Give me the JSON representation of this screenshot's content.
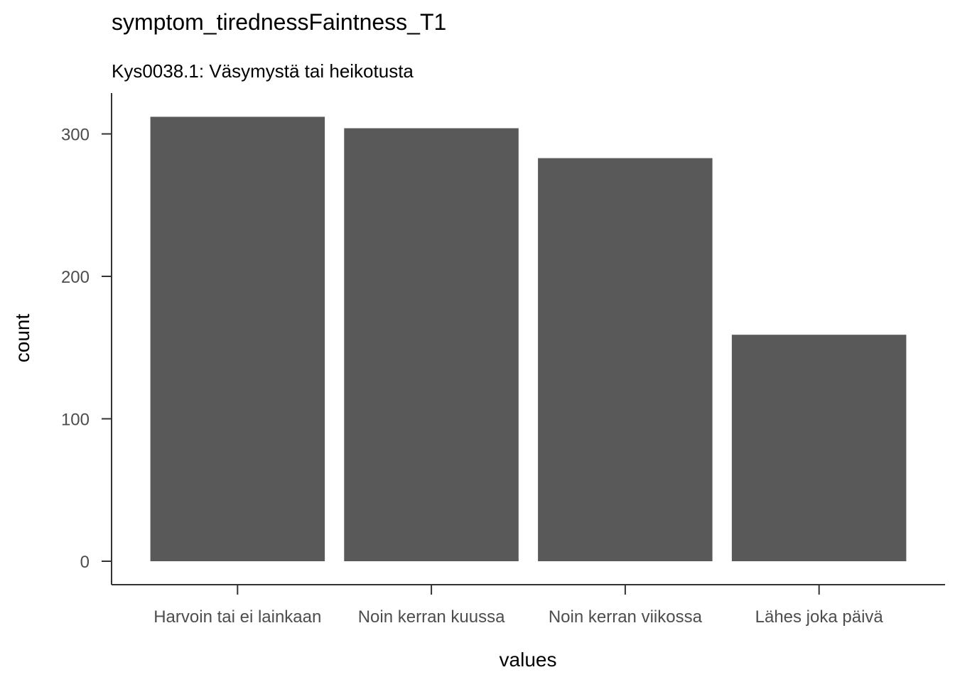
{
  "chart_data": {
    "type": "bar",
    "title": "symptom_tirednessFaintness_T1",
    "subtitle": "Kys0038.1: Väsymystä tai heikotusta",
    "xlabel": "values",
    "ylabel": "count",
    "categories": [
      "Harvoin tai ei lainkaan",
      "Noin kerran kuussa",
      "Noin kerran viikossa",
      "Lähes joka päivä"
    ],
    "values": [
      312,
      304,
      283,
      159
    ],
    "ylim": [
      0,
      325
    ],
    "yticks": [
      0,
      100,
      200,
      300
    ],
    "bar_color": "#595959",
    "grid": false,
    "legend": "none"
  }
}
